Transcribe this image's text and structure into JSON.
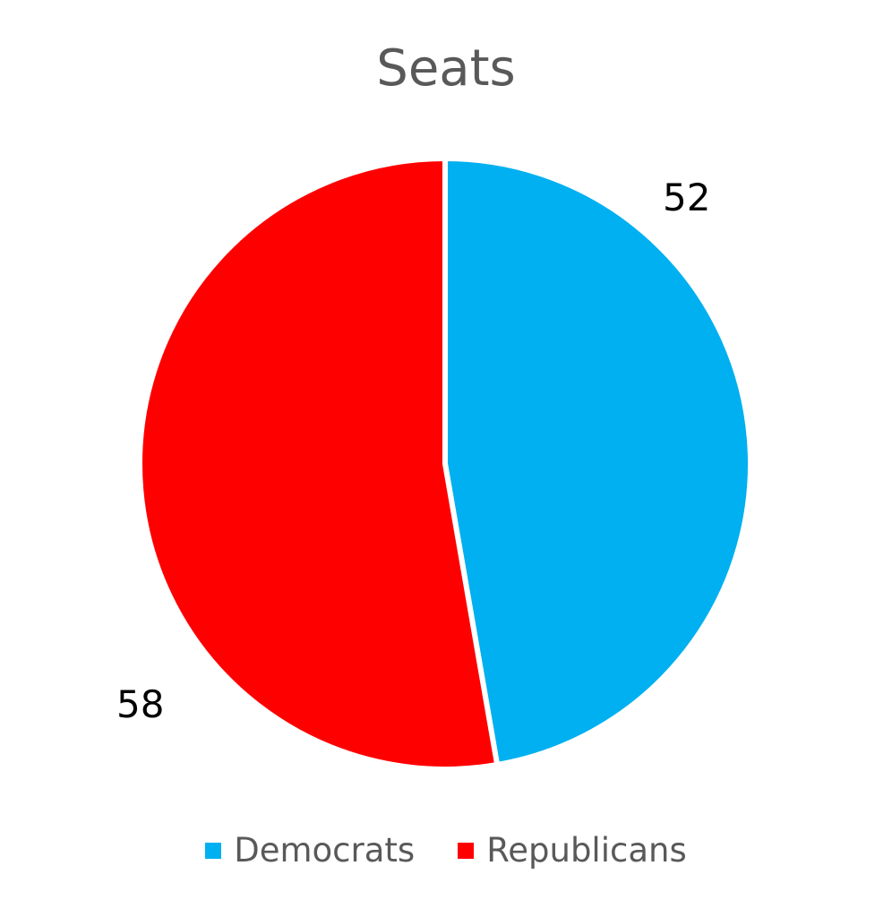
{
  "chart_data": {
    "type": "pie",
    "title": "Seats",
    "categories": [
      "Democrats",
      "Republicans"
    ],
    "values": [
      52,
      58
    ],
    "colors": [
      "#00b0f0",
      "#ff0000"
    ],
    "data_labels": [
      "52",
      "58"
    ],
    "legend_position": "bottom",
    "start_angle": 0
  },
  "legend": [
    {
      "label": "Democrats",
      "color": "#00b0f0"
    },
    {
      "label": "Republicans",
      "color": "#ff0000"
    }
  ]
}
